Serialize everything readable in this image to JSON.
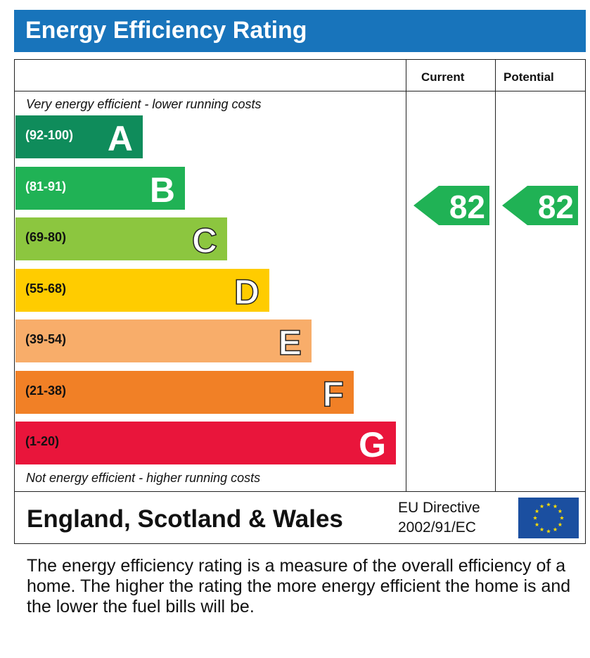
{
  "title": "Energy Efficiency Rating",
  "columns": {
    "current": "Current",
    "potential": "Potential"
  },
  "notes": {
    "top": "Very energy efficient - lower running costs",
    "bottom": "Not energy efficient - higher running costs"
  },
  "footer": {
    "region": "England, Scotland & Wales",
    "directive_line1": "EU Directive",
    "directive_line2": "2002/91/EC"
  },
  "description": "The energy efficiency rating is a measure of the overall efficiency of a home. The higher the rating the more energy efficient the home is and the lower the fuel bills will be.",
  "chart_data": {
    "type": "bar",
    "title": "Energy Efficiency Rating",
    "bands": [
      {
        "letter": "A",
        "range": "(92-100)",
        "min": 92,
        "max": 100,
        "color": "#0f8c5b",
        "letter_style": "filled",
        "range_color": "#ffffff"
      },
      {
        "letter": "B",
        "range": "(81-91)",
        "min": 81,
        "max": 91,
        "color": "#20b255",
        "letter_style": "filled",
        "range_color": "#ffffff"
      },
      {
        "letter": "C",
        "range": "(69-80)",
        "min": 69,
        "max": 80,
        "color": "#8cc63f",
        "letter_style": "outline",
        "range_color": "#111111"
      },
      {
        "letter": "D",
        "range": "(55-68)",
        "min": 55,
        "max": 68,
        "color": "#ffcc00",
        "letter_style": "outline",
        "range_color": "#111111"
      },
      {
        "letter": "E",
        "range": "(39-54)",
        "min": 39,
        "max": 54,
        "color": "#f8ad6a",
        "letter_style": "outline",
        "range_color": "#111111"
      },
      {
        "letter": "F",
        "range": "(21-38)",
        "min": 21,
        "max": 38,
        "color": "#f18026",
        "letter_style": "outline",
        "range_color": "#111111"
      },
      {
        "letter": "G",
        "range": "(1-20)",
        "min": 1,
        "max": 20,
        "color": "#e9153b",
        "letter_style": "filled",
        "range_color": "#111111"
      }
    ],
    "current": {
      "value": 82,
      "band": "B",
      "color": "#20b255"
    },
    "potential": {
      "value": 82,
      "band": "B",
      "color": "#20b255"
    }
  }
}
